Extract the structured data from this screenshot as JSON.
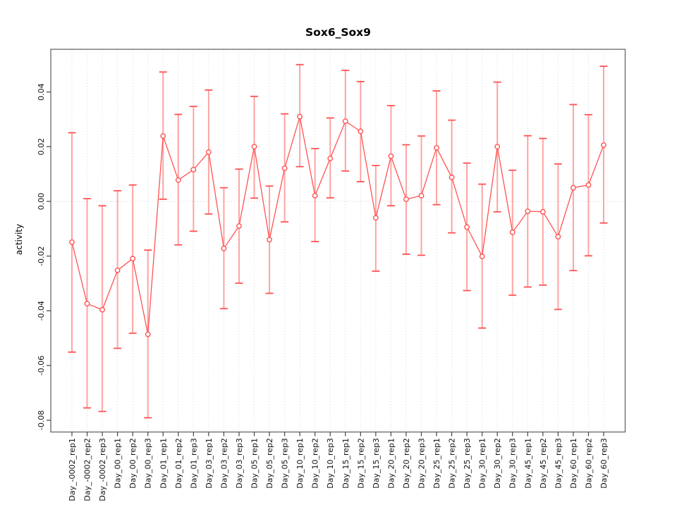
{
  "chart_data": {
    "type": "scatter",
    "subtype": "points-with-error-bars-connected-by-line",
    "title": "Sox6_Sox9",
    "xlabel": "",
    "ylabel": "activity",
    "categories": [
      "Day_-0002_rep1",
      "Day_-0002_rep2",
      "Day_-0002_rep3",
      "Day_00_rep1",
      "Day_00_rep2",
      "Day_00_rep3",
      "Day_01_rep1",
      "Day_01_rep2",
      "Day_01_rep3",
      "Day_03_rep1",
      "Day_03_rep2",
      "Day_03_rep3",
      "Day_05_rep1",
      "Day_05_rep2",
      "Day_05_rep3",
      "Day_10_rep1",
      "Day_10_rep2",
      "Day_10_rep3",
      "Day_15_rep1",
      "Day_15_rep2",
      "Day_15_rep3",
      "Day_20_rep1",
      "Day_20_rep2",
      "Day_20_rep3",
      "Day_25_rep1",
      "Day_25_rep2",
      "Day_25_rep3",
      "Day_30_rep1",
      "Day_30_rep2",
      "Day_30_rep3",
      "Day_45_rep1",
      "Day_45_rep2",
      "Day_45_rep3",
      "Day_60_rep1",
      "Day_60_rep2",
      "Day_60_rep3"
    ],
    "series": [
      {
        "name": "activity",
        "values": [
          -0.0149,
          -0.0374,
          -0.0396,
          -0.0252,
          -0.0209,
          -0.0486,
          0.0239,
          0.0078,
          0.0116,
          0.018,
          -0.0172,
          -0.009,
          0.02,
          -0.014,
          0.0121,
          0.031,
          0.0021,
          0.0157,
          0.0293,
          0.0256,
          -0.006,
          0.0165,
          0.0008,
          0.0021,
          0.0196,
          0.0088,
          -0.0094,
          -0.0201,
          0.02,
          -0.0113,
          -0.0036,
          -0.0038,
          -0.0129,
          0.005,
          0.006,
          0.0206
        ],
        "err_high": [
          0.0251,
          0.001,
          -0.0016,
          0.0039,
          0.006,
          -0.0178,
          0.0473,
          0.0318,
          0.0347,
          0.0407,
          0.005,
          0.0118,
          0.0384,
          0.0056,
          0.032,
          0.05,
          0.0193,
          0.0305,
          0.0479,
          0.0438,
          0.0131,
          0.035,
          0.0207,
          0.0239,
          0.0404,
          0.0297,
          0.014,
          0.0063,
          0.0436,
          0.0114,
          0.024,
          0.023,
          0.0137,
          0.0354,
          0.0317,
          0.0494
        ],
        "err_low": [
          -0.0551,
          -0.0755,
          -0.0768,
          -0.0537,
          -0.0482,
          -0.0791,
          0.0008,
          -0.0159,
          -0.0109,
          -0.0046,
          -0.0392,
          -0.0299,
          0.0012,
          -0.0336,
          -0.0075,
          0.0127,
          -0.0147,
          0.0013,
          0.0111,
          0.0072,
          -0.0255,
          -0.0016,
          -0.0193,
          -0.0197,
          -0.0012,
          -0.0115,
          -0.0326,
          -0.0463,
          -0.0038,
          -0.0343,
          -0.0313,
          -0.0306,
          -0.0395,
          -0.0253,
          -0.0199,
          -0.0079
        ]
      }
    ],
    "ylim": [
      -0.0843,
      0.0556
    ],
    "ytick_values": [
      0.04,
      0.02,
      0.0,
      -0.02,
      -0.04,
      -0.06,
      -0.08
    ],
    "ytick_labels": [
      "0.04",
      "0.02",
      "0.00",
      "-0.02",
      "-0.04",
      "-0.06",
      "-0.08"
    ],
    "grid": "vertical-dotted-per-category",
    "zero_line": true,
    "legend": "none",
    "colors": {
      "point": "#ff5252",
      "line": "#ff5252",
      "error_stem": "#ffa3a3",
      "error_cap": "#ff5252",
      "grid": "#d9d9d9",
      "zero_line": "#cfcfcf",
      "box": "#666666",
      "tick": "#444444",
      "text": "#111111"
    }
  }
}
